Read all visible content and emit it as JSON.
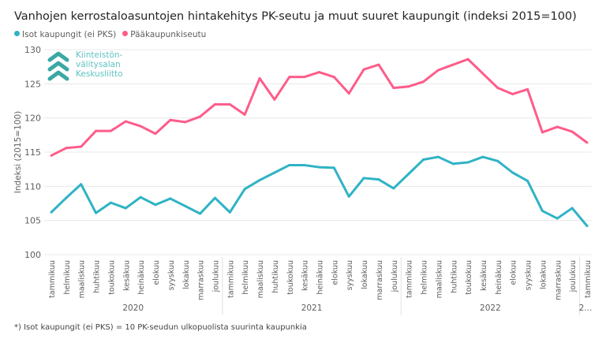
{
  "title": "Vanhojen kerrostaloasuntojen hintakehitys PK-seutu ja muut suuret kaupungit (indeksi 2015=100)",
  "footnote": "*) Isot kaupungit (ei PKS) = 10 PK-seudun ulkopuolista suurinta kaupunkia",
  "logo": {
    "lines": [
      "Kiinteistön-",
      "välitysalan",
      "Keskusliitto"
    ]
  },
  "chart_data": {
    "type": "line",
    "title": "Vanhojen kerrostaloasuntojen hintakehitys PK-seutu ja muut suuret kaupungit (indeksi 2015=100)",
    "xlabel": "",
    "ylabel": "Indeksi (2015=100)",
    "ylim": [
      100,
      130
    ],
    "yticks": [
      100,
      105,
      110,
      115,
      120,
      125,
      130
    ],
    "grid": true,
    "legend_position": "top-left",
    "months": [
      "tammikuu",
      "helmikuu",
      "maaliskuu",
      "huhtikuu",
      "toukokuu",
      "kesäkuu",
      "heinäkuu",
      "elokuu",
      "syyskuu",
      "lokakuu",
      "marraskuu",
      "joulukuu"
    ],
    "years": [
      "2020",
      "2021",
      "2022",
      "2..."
    ],
    "series": [
      {
        "name": "Isot kaupungit (ei PKS)",
        "color": "#2fb3c5",
        "values": [
          106.2,
          108.3,
          110.3,
          106.1,
          107.6,
          106.8,
          108.4,
          107.3,
          108.2,
          107.1,
          106.0,
          108.3,
          106.2,
          109.6,
          110.9,
          112.0,
          113.1,
          113.1,
          112.8,
          112.7,
          108.5,
          111.2,
          111.0,
          109.7,
          111.8,
          113.9,
          114.3,
          113.3,
          113.5,
          114.3,
          113.7,
          112.0,
          110.8,
          106.4,
          105.3,
          106.8,
          104.2
        ]
      },
      {
        "name": "Pääkaupunkiseutu",
        "color": "#fe5c8a",
        "values": [
          114.5,
          115.6,
          115.8,
          118.1,
          118.1,
          119.5,
          118.8,
          117.7,
          119.7,
          119.4,
          120.2,
          122.0,
          122.0,
          120.5,
          125.8,
          122.7,
          126.0,
          126.0,
          126.7,
          126.0,
          123.6,
          127.1,
          127.8,
          124.4,
          124.6,
          125.3,
          127.0,
          127.8,
          128.6,
          126.5,
          124.4,
          123.5,
          124.2,
          117.9,
          118.7,
          118.0,
          116.4
        ]
      }
    ]
  }
}
